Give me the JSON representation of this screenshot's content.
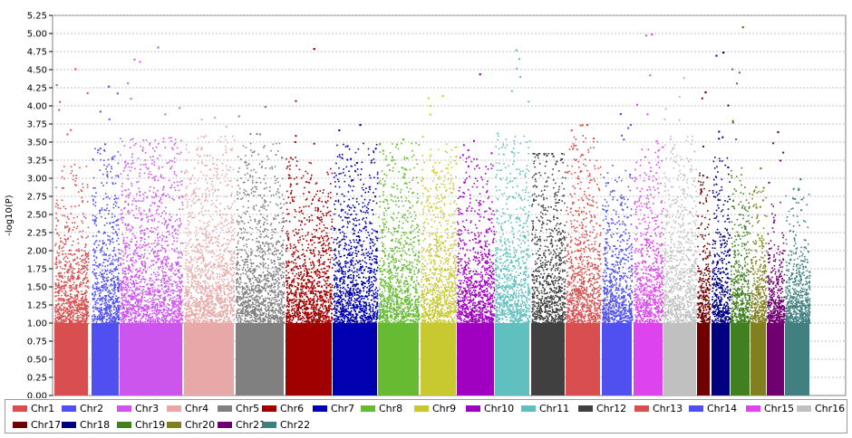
{
  "chart_data": {
    "type": "scatter",
    "title": "",
    "xlabel": "",
    "ylabel": "-log10(P)",
    "ylim": [
      0,
      5.25
    ],
    "yticks": [
      "0.00",
      "0.25",
      "0.50",
      "0.75",
      "1.00",
      "1.25",
      "1.50",
      "1.75",
      "2.00",
      "2.25",
      "2.50",
      "2.75",
      "3.00",
      "3.25",
      "3.50",
      "3.75",
      "4.00",
      "4.25",
      "4.50",
      "4.75",
      "5.00",
      "5.25"
    ],
    "grid": true,
    "legend_position": "bottom",
    "series": [
      {
        "name": "Chr1",
        "color": "#d94f4f",
        "top_p": 4.52,
        "dense_to": 2.3
      },
      {
        "name": "Chr2",
        "color": "#5050f0",
        "top_p": 4.28,
        "dense_to": 2.6
      },
      {
        "name": "Chr3",
        "color": "#cc55ee",
        "top_p": 4.82,
        "dense_to": 2.7
      },
      {
        "name": "Chr4",
        "color": "#e8a8a8",
        "top_p": 3.85,
        "dense_to": 2.7
      },
      {
        "name": "Chr5",
        "color": "#808080",
        "top_p": 4.0,
        "dense_to": 2.6
      },
      {
        "name": "Chr6",
        "color": "#a00000",
        "top_p": 4.8,
        "dense_to": 2.4
      },
      {
        "name": "Chr7",
        "color": "#0000b0",
        "top_p": 3.75,
        "dense_to": 2.6
      },
      {
        "name": "Chr8",
        "color": "#66bb33",
        "top_p": 3.55,
        "dense_to": 2.6
      },
      {
        "name": "Chr9",
        "color": "#c8c830",
        "top_p": 4.15,
        "dense_to": 2.6
      },
      {
        "name": "Chr10",
        "color": "#a000c0",
        "top_p": 4.45,
        "dense_to": 2.4
      },
      {
        "name": "Chr11",
        "color": "#60c0c0",
        "top_p": 4.78,
        "dense_to": 2.7
      },
      {
        "name": "Chr12",
        "color": "#404040",
        "top_p": 3.35,
        "dense_to": 2.6
      },
      {
        "name": "Chr13",
        "color": "#d94f4f",
        "top_p": 3.75,
        "dense_to": 2.7
      },
      {
        "name": "Chr14",
        "color": "#5050f0",
        "top_p": 3.9,
        "dense_to": 2.3
      },
      {
        "name": "Chr15",
        "color": "#dd44ee",
        "top_p": 5.0,
        "dense_to": 2.6
      },
      {
        "name": "Chr16",
        "color": "#c0c0c0",
        "top_p": 4.4,
        "dense_to": 2.7
      },
      {
        "name": "Chr17",
        "color": "#700000",
        "top_p": 4.2,
        "dense_to": 2.2
      },
      {
        "name": "Chr18",
        "color": "#000080",
        "top_p": 4.75,
        "dense_to": 2.4
      },
      {
        "name": "Chr19",
        "color": "#408020",
        "top_p": 5.1,
        "dense_to": 2.3
      },
      {
        "name": "Chr20",
        "color": "#808020",
        "top_p": 3.15,
        "dense_to": 2.0
      },
      {
        "name": "Chr21",
        "color": "#700070",
        "top_p": 3.65,
        "dense_to": 1.8
      },
      {
        "name": "Chr22",
        "color": "#408080",
        "top_p": 3.0,
        "dense_to": 1.9
      }
    ]
  }
}
